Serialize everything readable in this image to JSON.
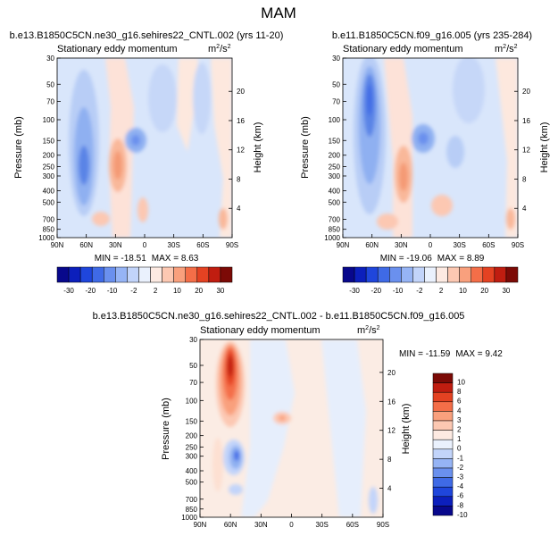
{
  "chart_data": {
    "type": "heatmap",
    "suptitle": "MAM",
    "units": "m",
    "units_sup": "2",
    "units_den": "/s",
    "units_den_sup": "2",
    "ylabel": "Pressure (mb)",
    "y2label": "Height (km)",
    "xticks": [
      "90N",
      "60N",
      "30N",
      "0",
      "30S",
      "60S",
      "90S"
    ],
    "yticks": [
      "30",
      "50",
      "70",
      "100",
      "150",
      "200",
      "250",
      "300",
      "400",
      "500",
      "700",
      "850",
      "1000"
    ],
    "y2ticks": [
      "4",
      "8",
      "12",
      "16",
      "20"
    ],
    "ylim": [
      1000,
      30
    ],
    "panels": [
      {
        "title": "b.e13.B1850C5CN.ne30_g16.sehires22_CNTL.002 (yrs 11-20)",
        "subtitle": "Stationary eddy momentum",
        "min_label": "MIN = -18.51",
        "max_label": "MAX =   8.63",
        "min": -18.51,
        "max": 8.63
      },
      {
        "title": "b.e11.B1850C5CN.f09_g16.005 (yrs 235-284)",
        "subtitle": "Stationary eddy momentum",
        "min_label": "MIN = -19.06",
        "max_label": "MAX =   8.89",
        "min": -19.06,
        "max": 8.89
      },
      {
        "title": "b.e13.B1850C5CN.ne30_g16.sehires22_CNTL.002 - b.e11.B1850C5CN.f09_g16.005",
        "subtitle": "Stationary eddy momentum",
        "min_label": "MIN = -11.59",
        "max_label": "MAX =   9.42",
        "min": -11.59,
        "max": 9.42
      }
    ],
    "colorbar_levels": [
      "-30",
      "-20",
      "-10",
      "-2",
      "2",
      "10",
      "20",
      "30"
    ],
    "colorbar_diff_levels": [
      "10",
      "8",
      "6",
      "4",
      "3",
      "2",
      "1",
      "0",
      "-1",
      "-2",
      "-3",
      "-4",
      "-6",
      "-8",
      "-10"
    ],
    "colorbar_colors": [
      "#08088c",
      "#0c1fbc",
      "#1f46dc",
      "#3f6ae6",
      "#6a90ee",
      "#96b4f5",
      "#c2d4fa",
      "#eaf1fd",
      "#fdeae2",
      "#fcc8b2",
      "#f9a07d",
      "#f46e48",
      "#e44222",
      "#c01d10",
      "#7c0a06"
    ]
  }
}
